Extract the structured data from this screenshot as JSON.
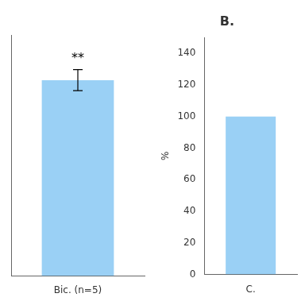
{
  "chart_data": [
    {
      "type": "bar",
      "categories": [
        "Bic. (n=5)"
      ],
      "values": [
        130
      ],
      "errors": [
        7
      ],
      "annotation": "**",
      "ylim": [
        0,
        160
      ],
      "grid": false,
      "tick_labels": "x"
    },
    {
      "type": "bar",
      "title": "B.",
      "xlabel": "C.",
      "ylabel": "%",
      "categories": [
        null
      ],
      "values": [
        100
      ],
      "ylim": [
        0,
        150
      ],
      "yticks": [
        0,
        20,
        40,
        60,
        80,
        100,
        120,
        140
      ],
      "grid": false,
      "tick_labels": "y"
    }
  ]
}
